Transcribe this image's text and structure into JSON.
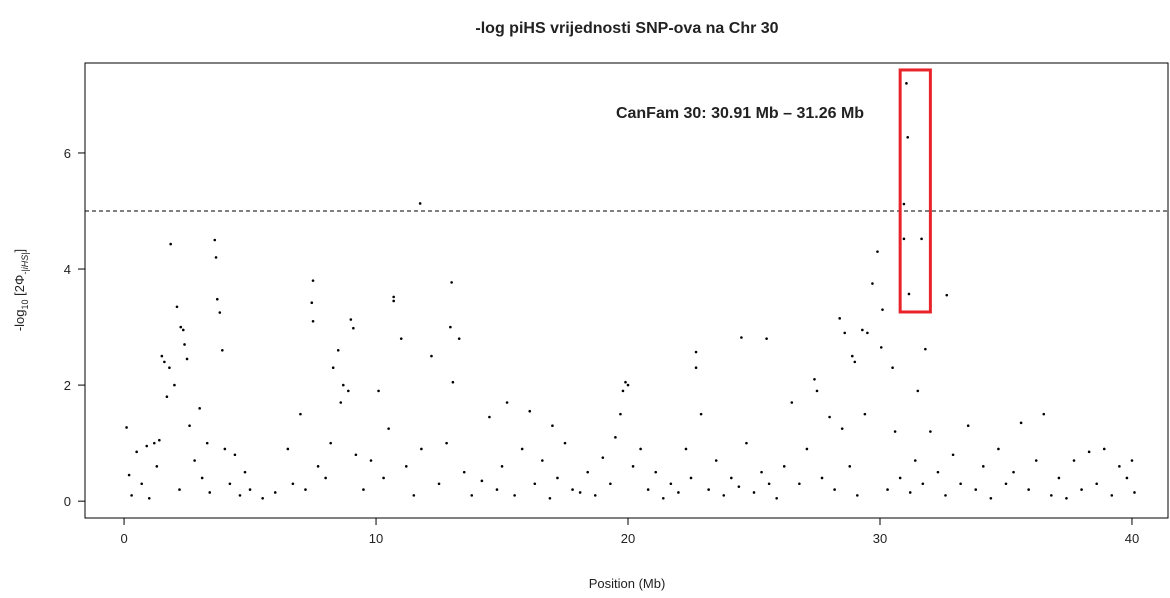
{
  "chart_data": {
    "type": "scatter",
    "title": "-log piHS vrijednosti SNP-ova na Chr 30",
    "x_label": "Position (Mb)",
    "y_label_parts": [
      "-log",
      "10",
      " [2Φ",
      "-|iHS|",
      "]"
    ],
    "annotation": "CanFam 30: 30.91 Mb – 31.26 Mb",
    "highlight_box": {
      "x": [
        30.8,
        32.0
      ],
      "y": [
        3.26,
        7.43
      ],
      "color": "#e8232a"
    },
    "hline": 5,
    "color": "#000000",
    "xlim": [
      -1.55,
      41.43
    ],
    "ylim": [
      -0.29,
      7.55
    ],
    "xticks": [
      0,
      10,
      20,
      30,
      40
    ],
    "yticks": [
      0,
      2,
      4,
      6
    ],
    "x": [
      31.05,
      31.1,
      30.95,
      30.95,
      31.65,
      31.15,
      32.65,
      11.75,
      1.85,
      3.6,
      3.65,
      3.7,
      3.8,
      3.9,
      7.5,
      7.45,
      7.5,
      10.7,
      10.7,
      13.0,
      12.95,
      9.0,
      9.1,
      11.0,
      12.2,
      13.3,
      22.7,
      22.7,
      24.5,
      25.5,
      28.4,
      29.7,
      29.9,
      30.1,
      30.05,
      29.3,
      29.5,
      28.6,
      28.9,
      29.0,
      31.8,
      2.1,
      2.25,
      2.35,
      2.4,
      2.5,
      1.5,
      1.6,
      1.8,
      2.0,
      1.7,
      8.5,
      8.3,
      8.7,
      8.9,
      8.6,
      10.1,
      13.05,
      19.9,
      20.0,
      19.8,
      19.7,
      27.4,
      27.5,
      30.5,
      31.5,
      15.2,
      16.1,
      17.0,
      0.1,
      0.2,
      0.3,
      0.5,
      0.7,
      0.9,
      1.0,
      1.2,
      1.3,
      1.4,
      2.2,
      2.6,
      2.8,
      3.0,
      3.1,
      3.3,
      3.4,
      4.0,
      4.2,
      4.4,
      4.6,
      4.8,
      5.0,
      5.5,
      6.0,
      6.5,
      6.7,
      7.0,
      7.2,
      7.7,
      8.0,
      8.2,
      9.2,
      9.5,
      9.8,
      10.3,
      10.5,
      11.2,
      11.5,
      11.8,
      12.5,
      12.8,
      13.5,
      13.8,
      14.2,
      14.5,
      14.8,
      15.0,
      15.5,
      15.8,
      16.3,
      16.6,
      16.9,
      17.2,
      17.5,
      17.8,
      18.1,
      18.4,
      18.7,
      19.0,
      19.3,
      19.5,
      20.2,
      20.5,
      20.8,
      21.1,
      21.4,
      21.7,
      22.0,
      22.3,
      22.5,
      22.9,
      23.2,
      23.5,
      23.8,
      24.1,
      24.4,
      24.7,
      25.0,
      25.3,
      25.6,
      25.9,
      26.2,
      26.5,
      26.8,
      27.1,
      27.7,
      28.0,
      28.2,
      28.5,
      28.8,
      29.1,
      29.4,
      30.3,
      30.6,
      30.8,
      31.2,
      31.4,
      31.7,
      32.0,
      32.3,
      32.6,
      32.9,
      33.2,
      33.5,
      33.8,
      34.1,
      34.4,
      34.7,
      35.0,
      35.3,
      35.6,
      35.9,
      36.2,
      36.5,
      36.8,
      37.1,
      37.4,
      37.7,
      38.0,
      38.3,
      38.6,
      38.9,
      39.2,
      39.5,
      39.8,
      40.0,
      40.1
    ],
    "y": [
      7.2,
      6.27,
      5.12,
      4.52,
      4.52,
      3.57,
      3.55,
      5.13,
      4.43,
      4.5,
      4.2,
      3.48,
      3.25,
      2.6,
      3.8,
      3.42,
      3.1,
      3.52,
      3.45,
      3.77,
      3.0,
      3.13,
      2.98,
      2.8,
      2.5,
      2.8,
      2.57,
      2.3,
      2.82,
      2.8,
      3.15,
      3.75,
      4.3,
      3.3,
      2.65,
      2.95,
      2.9,
      2.9,
      2.5,
      2.4,
      2.62,
      3.35,
      3.0,
      2.95,
      2.7,
      2.45,
      2.5,
      2.4,
      2.3,
      2.0,
      1.8,
      2.6,
      2.3,
      2.0,
      1.9,
      1.7,
      1.9,
      2.05,
      2.05,
      2.0,
      1.9,
      1.5,
      2.1,
      1.9,
      2.3,
      1.9,
      1.7,
      1.55,
      1.3,
      1.27,
      0.45,
      0.1,
      0.85,
      0.3,
      0.95,
      0.05,
      1.0,
      0.6,
      1.05,
      0.2,
      1.3,
      0.7,
      1.6,
      0.4,
      1.0,
      0.15,
      0.9,
      0.3,
      0.8,
      0.1,
      0.5,
      0.2,
      0.05,
      0.15,
      0.9,
      0.3,
      1.5,
      0.2,
      0.6,
      0.4,
      1.0,
      0.8,
      0.2,
      0.7,
      0.4,
      1.25,
      0.6,
      0.1,
      0.9,
      0.3,
      1.0,
      0.5,
      0.1,
      0.35,
      1.45,
      0.2,
      0.6,
      0.1,
      0.9,
      0.3,
      0.7,
      0.05,
      0.4,
      1.0,
      0.2,
      0.15,
      0.5,
      0.1,
      0.75,
      0.3,
      1.1,
      0.6,
      0.9,
      0.2,
      0.5,
      0.05,
      0.3,
      0.15,
      0.9,
      0.4,
      1.5,
      0.2,
      0.7,
      0.1,
      0.4,
      0.25,
      1.0,
      0.15,
      0.5,
      0.3,
      0.05,
      0.6,
      1.7,
      0.3,
      0.9,
      0.4,
      1.45,
      0.2,
      1.25,
      0.6,
      0.1,
      1.5,
      0.2,
      1.2,
      0.4,
      0.15,
      0.7,
      0.3,
      1.2,
      0.5,
      0.1,
      0.8,
      0.3,
      1.3,
      0.2,
      0.6,
      0.05,
      0.9,
      0.3,
      0.5,
      1.35,
      0.2,
      0.7,
      1.5,
      0.1,
      0.4,
      0.05,
      0.7,
      0.2,
      0.85,
      0.3,
      0.9,
      0.1,
      0.6,
      0.4,
      0.7,
      0.15
    ]
  }
}
